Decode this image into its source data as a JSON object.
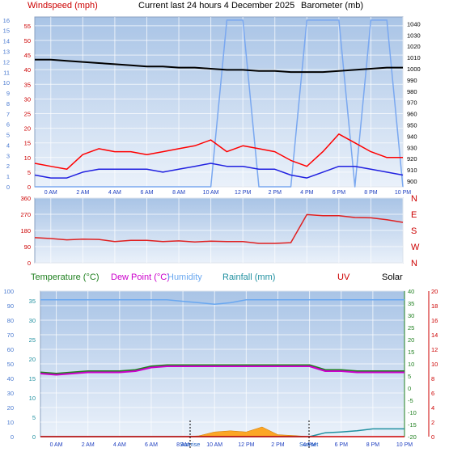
{
  "header": {
    "windspeed_label": "Windspeed (mph)",
    "title": "Current last 24 hours 4 December 2025",
    "barometer_label": "Barometer (mb)"
  },
  "bottom_header": {
    "temperature": "Temperature (°C)",
    "dewpoint": "Dew Point (°C)",
    "humidity": "Humidity",
    "rainfall": "Rainfall (mm)",
    "uv": "UV",
    "solar": "Solar"
  },
  "markers": {
    "sunrise": "Sunrise",
    "sunset": "Sunset"
  },
  "time_ticks": [
    "0 AM",
    "2 AM",
    "4 AM",
    "6 AM",
    "8 AM",
    "10 AM",
    "12 PM",
    "2 PM",
    "4 PM",
    "6 PM",
    "8 PM",
    "10 PM"
  ],
  "colors": {
    "wind_speed": "#ff0000",
    "wind_avg": "#2020e0",
    "barometer": "#000000",
    "beaufort": "#7aa8f0",
    "direction": "#e02020",
    "temperature": "#208020",
    "dewpoint": "#cc00cc",
    "humidity": "#6aa8f0",
    "rainfall": "#2090a0",
    "solar": "#ff9900",
    "uv": "#cc0000"
  },
  "chart_data": [
    {
      "type": "line",
      "title": "Windspeed / Barometer",
      "x": [
        "-1:00",
        "0:00",
        "1:00",
        "2:00",
        "3:00",
        "4:00",
        "5:00",
        "6:00",
        "7:00",
        "8:00",
        "9:00",
        "10:00",
        "11:00",
        "12:00",
        "13:00",
        "14:00",
        "15:00",
        "16:00",
        "17:00",
        "18:00",
        "19:00",
        "20:00",
        "21:00",
        "22:00"
      ],
      "left_axis": {
        "label": "Windspeed (mph)",
        "ylim": [
          0,
          58
        ],
        "ticks": [
          0,
          5,
          10,
          15,
          20,
          25,
          30,
          35,
          40,
          45,
          50,
          55
        ]
      },
      "beaufort_axis": {
        "ylim": [
          0,
          16.3
        ],
        "ticks": [
          0,
          1,
          2,
          3,
          4,
          5,
          6,
          7,
          8,
          9,
          10,
          11,
          12,
          13,
          14,
          15,
          16
        ]
      },
      "right_axis": {
        "label": "Barometer (mb)",
        "ylim": [
          895,
          1046
        ],
        "ticks": [
          900,
          910,
          920,
          930,
          940,
          950,
          960,
          970,
          980,
          990,
          1000,
          1010,
          1020,
          1030,
          1040
        ]
      },
      "series": [
        {
          "name": "Windspeed",
          "axis": "left",
          "values": [
            8,
            7,
            6,
            11,
            13,
            12,
            12,
            11,
            12,
            13,
            14,
            16,
            12,
            14,
            13,
            12,
            9,
            7,
            12,
            18,
            15,
            12,
            10,
            10
          ]
        },
        {
          "name": "Wind average",
          "axis": "left",
          "values": [
            4,
            3,
            3,
            5,
            6,
            6,
            6,
            6,
            5,
            6,
            7,
            8,
            7,
            7,
            6,
            6,
            4,
            3,
            5,
            7,
            7,
            6,
            5,
            4
          ]
        },
        {
          "name": "Barometer",
          "axis": "right",
          "values": [
            1008,
            1008,
            1007,
            1006,
            1005,
            1004,
            1003,
            1002,
            1002,
            1001,
            1001,
            1000,
            999,
            999,
            998,
            998,
            997,
            997,
            997,
            998,
            999,
            1000,
            1001,
            1001
          ]
        },
        {
          "name": "Beaufort",
          "axis": "beaufort",
          "values": [
            0,
            0,
            0,
            0,
            0,
            0,
            0,
            0,
            0,
            0,
            0,
            0,
            16,
            16,
            0,
            0,
            0,
            16,
            16,
            16,
            0,
            16,
            16,
            0
          ]
        }
      ]
    },
    {
      "type": "line",
      "title": "Wind direction",
      "x": [
        "-1:00",
        "0:00",
        "1:00",
        "2:00",
        "3:00",
        "4:00",
        "5:00",
        "6:00",
        "7:00",
        "8:00",
        "9:00",
        "10:00",
        "11:00",
        "12:00",
        "13:00",
        "14:00",
        "15:00",
        "16:00",
        "17:00",
        "18:00",
        "19:00",
        "20:00",
        "21:00",
        "22:00"
      ],
      "left_axis": {
        "ylim": [
          0,
          360
        ],
        "ticks": [
          0,
          90,
          180,
          270,
          360
        ]
      },
      "right_axis": {
        "ticks": [
          "N",
          "E",
          "S",
          "W",
          "N"
        ]
      },
      "series": [
        {
          "name": "Direction",
          "values": [
            140,
            135,
            128,
            132,
            130,
            118,
            125,
            125,
            118,
            122,
            116,
            120,
            118,
            118,
            108,
            108,
            112,
            268,
            262,
            262,
            252,
            250,
            240,
            225
          ]
        }
      ]
    },
    {
      "type": "line",
      "title": "Temperature / Humidity / Rainfall / Solar",
      "x": [
        "-1:00",
        "0:00",
        "1:00",
        "2:00",
        "3:00",
        "4:00",
        "5:00",
        "6:00",
        "7:00",
        "8:00",
        "9:00",
        "10:00",
        "11:00",
        "12:00",
        "13:00",
        "14:00",
        "15:00",
        "16:00",
        "17:00",
        "18:00",
        "19:00",
        "20:00",
        "21:00",
        "22:00"
      ],
      "left_axis": {
        "ylim": [
          0,
          100
        ],
        "ticks": [
          0,
          10,
          20,
          30,
          40,
          50,
          60,
          70,
          80,
          90,
          100
        ]
      },
      "rain_axis": {
        "ylim": [
          0,
          37.5
        ],
        "ticks": [
          0,
          5,
          10,
          15,
          20,
          25,
          30,
          35
        ]
      },
      "temp_axis": {
        "ylim": [
          -20,
          40
        ],
        "ticks": [
          -20,
          -15,
          -10,
          -5,
          0,
          5,
          10,
          15,
          20,
          25,
          30,
          35,
          40
        ]
      },
      "uv_axis": {
        "ylim": [
          0,
          20
        ],
        "ticks": [
          0,
          2,
          4,
          6,
          8,
          10,
          12,
          14,
          16,
          18,
          20
        ]
      },
      "series": [
        {
          "name": "Humidity",
          "axis": "left",
          "values": [
            94,
            94,
            94,
            94,
            94,
            94,
            94,
            94,
            94,
            93,
            92,
            91,
            92,
            94,
            94,
            94,
            94,
            94,
            94,
            94,
            94,
            94,
            94,
            94
          ]
        },
        {
          "name": "Temperature",
          "axis": "temp",
          "values": [
            6.5,
            6.0,
            6.5,
            7.0,
            7.0,
            7.0,
            7.5,
            9.0,
            9.5,
            9.5,
            9.5,
            9.5,
            9.5,
            9.5,
            9.5,
            9.5,
            9.5,
            9.5,
            7.5,
            7.5,
            7.0,
            7.0,
            7.0,
            7.0
          ]
        },
        {
          "name": "Dew Point",
          "axis": "temp",
          "values": [
            6.0,
            5.5,
            6.0,
            6.5,
            6.5,
            6.5,
            7.0,
            8.5,
            9.0,
            9.0,
            9.0,
            9.0,
            9.0,
            9.0,
            9.0,
            9.0,
            9.0,
            9.0,
            7.0,
            7.0,
            6.5,
            6.5,
            6.5,
            6.5
          ]
        },
        {
          "name": "Rainfall",
          "axis": "rain",
          "values": [
            0,
            0,
            0,
            0,
            0,
            0,
            0,
            0,
            0,
            0,
            0,
            0,
            0,
            0,
            0,
            0,
            0,
            0,
            1.0,
            1.2,
            1.5,
            2.0,
            2.0,
            2.0
          ]
        },
        {
          "name": "Solar",
          "axis": "rain",
          "values": [
            0,
            0,
            0,
            0,
            0,
            0,
            0,
            0,
            0,
            0,
            0.2,
            1.2,
            1.5,
            1.2,
            2.5,
            0.5,
            0.3,
            0,
            0,
            0,
            0,
            0,
            0,
            0
          ]
        },
        {
          "name": "UV",
          "axis": "uv",
          "values": [
            0,
            0,
            0,
            0,
            0,
            0,
            0,
            0,
            0,
            0,
            0,
            0,
            0,
            0,
            0,
            0,
            0,
            0,
            0,
            0,
            0,
            0,
            0,
            0
          ]
        }
      ]
    }
  ]
}
